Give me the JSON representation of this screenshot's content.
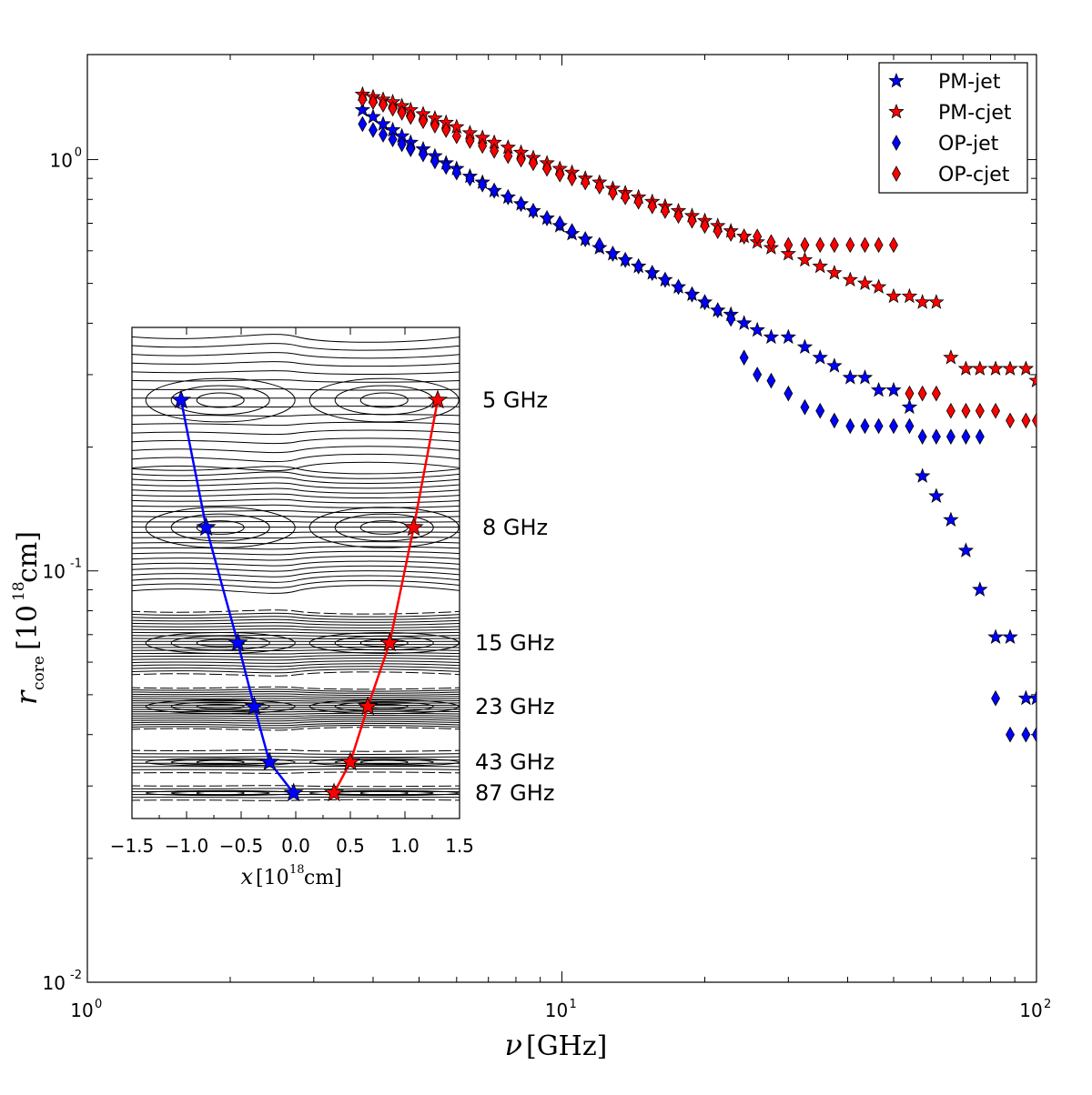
{
  "chart_data": [
    {
      "type": "scatter",
      "name": "core-radius-vs-frequency",
      "xscale": "log",
      "yscale": "log",
      "xlim": [
        1,
        100
      ],
      "ylim": [
        0.01,
        1.8
      ],
      "xlabel": {
        "sym": "ν",
        "unit": "[GHz]"
      },
      "ylabel": {
        "sym": "r",
        "sub": "core",
        "unit_pre": "[10",
        "unit_exp": "18",
        "unit_post": "cm]"
      },
      "xticks": [
        {
          "v": 1,
          "base": "10",
          "exp": "0"
        },
        {
          "v": 10,
          "base": "10",
          "exp": "1"
        },
        {
          "v": 100,
          "base": "10",
          "exp": "2"
        }
      ],
      "yticks": [
        {
          "v": 0.01,
          "base": "10",
          "exp": "-2"
        },
        {
          "v": 0.1,
          "base": "10",
          "exp": "-1"
        },
        {
          "v": 1,
          "base": "10",
          "exp": "0"
        }
      ],
      "legend_position": "top-right",
      "series": [
        {
          "name": "PM-jet",
          "marker": "star",
          "color": "#0000ff",
          "points": [
            [
              3.8,
              1.32
            ],
            [
              4.0,
              1.27
            ],
            [
              4.2,
              1.22
            ],
            [
              4.4,
              1.18
            ],
            [
              4.6,
              1.14
            ],
            [
              4.8,
              1.1
            ],
            [
              5.1,
              1.06
            ],
            [
              5.4,
              1.02
            ],
            [
              5.7,
              0.98
            ],
            [
              6.0,
              0.95
            ],
            [
              6.4,
              0.91
            ],
            [
              6.8,
              0.88
            ],
            [
              7.2,
              0.84
            ],
            [
              7.7,
              0.81
            ],
            [
              8.2,
              0.78
            ],
            [
              8.7,
              0.75
            ],
            [
              9.3,
              0.72
            ],
            [
              9.9,
              0.69
            ],
            [
              10.5,
              0.66
            ],
            [
              11.2,
              0.64
            ],
            [
              12.0,
              0.61
            ],
            [
              12.8,
              0.59
            ],
            [
              13.6,
              0.57
            ],
            [
              14.5,
              0.55
            ],
            [
              15.5,
              0.53
            ],
            [
              16.5,
              0.51
            ],
            [
              17.6,
              0.49
            ],
            [
              18.8,
              0.47
            ],
            [
              20.0,
              0.45
            ],
            [
              21.3,
              0.43
            ],
            [
              22.7,
              0.42
            ],
            [
              24.2,
              0.4
            ],
            [
              25.8,
              0.385
            ],
            [
              27.6,
              0.37
            ],
            [
              30.0,
              0.37
            ],
            [
              32.5,
              0.35
            ],
            [
              35.0,
              0.33
            ],
            [
              37.5,
              0.315
            ],
            [
              40.5,
              0.295
            ],
            [
              43.5,
              0.295
            ],
            [
              46.5,
              0.275
            ],
            [
              50.0,
              0.275
            ],
            [
              54.0,
              0.25
            ],
            [
              57.5,
              0.17
            ],
            [
              61.5,
              0.152
            ],
            [
              66.0,
              0.133
            ],
            [
              71.0,
              0.112
            ],
            [
              76.0,
              0.09
            ],
            [
              82.0,
              0.069
            ],
            [
              88.0,
              0.069
            ],
            [
              95.0,
              0.049
            ],
            [
              100.0,
              0.049
            ]
          ]
        },
        {
          "name": "PM-cjet",
          "marker": "star",
          "color": "#ff0000",
          "points": [
            [
              3.8,
              1.44
            ],
            [
              4.0,
              1.42
            ],
            [
              4.2,
              1.4
            ],
            [
              4.4,
              1.38
            ],
            [
              4.6,
              1.35
            ],
            [
              4.8,
              1.32
            ],
            [
              5.1,
              1.29
            ],
            [
              5.4,
              1.26
            ],
            [
              5.7,
              1.23
            ],
            [
              6.0,
              1.2
            ],
            [
              6.4,
              1.16
            ],
            [
              6.8,
              1.13
            ],
            [
              7.2,
              1.1
            ],
            [
              7.7,
              1.07
            ],
            [
              8.2,
              1.04
            ],
            [
              8.7,
              1.01
            ],
            [
              9.3,
              0.98
            ],
            [
              9.9,
              0.95
            ],
            [
              10.5,
              0.93
            ],
            [
              11.2,
              0.9
            ],
            [
              12.0,
              0.88
            ],
            [
              12.8,
              0.85
            ],
            [
              13.6,
              0.83
            ],
            [
              14.5,
              0.81
            ],
            [
              15.5,
              0.79
            ],
            [
              16.5,
              0.77
            ],
            [
              17.6,
              0.75
            ],
            [
              18.8,
              0.73
            ],
            [
              20.0,
              0.71
            ],
            [
              21.3,
              0.69
            ],
            [
              22.7,
              0.67
            ],
            [
              24.2,
              0.65
            ],
            [
              25.8,
              0.63
            ],
            [
              27.6,
              0.61
            ],
            [
              30.0,
              0.59
            ],
            [
              32.5,
              0.57
            ],
            [
              35.0,
              0.55
            ],
            [
              37.5,
              0.53
            ],
            [
              40.5,
              0.51
            ],
            [
              43.5,
              0.5
            ],
            [
              46.5,
              0.49
            ],
            [
              50.0,
              0.465
            ],
            [
              54.0,
              0.465
            ],
            [
              57.5,
              0.45
            ],
            [
              61.5,
              0.45
            ],
            [
              66.0,
              0.33
            ],
            [
              71.0,
              0.31
            ],
            [
              76.0,
              0.31
            ],
            [
              82.0,
              0.31
            ],
            [
              88.0,
              0.31
            ],
            [
              95.0,
              0.31
            ],
            [
              100.0,
              0.29
            ]
          ]
        },
        {
          "name": "OP-jet",
          "marker": "diamond",
          "color": "#0000ff",
          "points": [
            [
              3.8,
              1.22
            ],
            [
              4.0,
              1.18
            ],
            [
              4.2,
              1.15
            ],
            [
              4.4,
              1.12
            ],
            [
              4.6,
              1.09
            ],
            [
              4.8,
              1.06
            ],
            [
              5.1,
              1.03
            ],
            [
              5.4,
              0.99
            ],
            [
              5.7,
              0.96
            ],
            [
              6.0,
              0.93
            ],
            [
              6.4,
              0.9
            ],
            [
              6.8,
              0.87
            ],
            [
              7.2,
              0.84
            ],
            [
              7.7,
              0.81
            ],
            [
              8.2,
              0.78
            ],
            [
              8.7,
              0.75
            ],
            [
              9.3,
              0.72
            ],
            [
              9.9,
              0.7
            ],
            [
              10.5,
              0.67
            ],
            [
              11.2,
              0.64
            ],
            [
              12.0,
              0.62
            ],
            [
              12.8,
              0.59
            ],
            [
              13.6,
              0.57
            ],
            [
              14.5,
              0.55
            ],
            [
              15.5,
              0.53
            ],
            [
              16.5,
              0.51
            ],
            [
              17.6,
              0.49
            ],
            [
              18.8,
              0.47
            ],
            [
              20.0,
              0.45
            ],
            [
              21.3,
              0.43
            ],
            [
              22.7,
              0.41
            ],
            [
              24.2,
              0.33
            ],
            [
              25.8,
              0.3
            ],
            [
              27.6,
              0.29
            ],
            [
              30.0,
              0.27
            ],
            [
              32.5,
              0.25
            ],
            [
              35.0,
              0.245
            ],
            [
              37.5,
              0.232
            ],
            [
              40.5,
              0.225
            ],
            [
              43.5,
              0.225
            ],
            [
              46.5,
              0.225
            ],
            [
              50.0,
              0.225
            ],
            [
              54.0,
              0.225
            ],
            [
              57.5,
              0.212
            ],
            [
              61.5,
              0.212
            ],
            [
              66.0,
              0.212
            ],
            [
              71.0,
              0.212
            ],
            [
              76.0,
              0.212
            ],
            [
              82.0,
              0.049
            ],
            [
              88.0,
              0.04
            ],
            [
              95.0,
              0.04
            ],
            [
              100.0,
              0.04
            ]
          ]
        },
        {
          "name": "OP-cjet",
          "marker": "diamond",
          "color": "#ff0000",
          "points": [
            [
              3.8,
              1.4
            ],
            [
              4.0,
              1.38
            ],
            [
              4.2,
              1.36
            ],
            [
              4.4,
              1.33
            ],
            [
              4.6,
              1.3
            ],
            [
              4.8,
              1.27
            ],
            [
              5.1,
              1.24
            ],
            [
              5.4,
              1.21
            ],
            [
              5.7,
              1.18
            ],
            [
              6.0,
              1.14
            ],
            [
              6.4,
              1.11
            ],
            [
              6.8,
              1.08
            ],
            [
              7.2,
              1.05
            ],
            [
              7.7,
              1.02
            ],
            [
              8.2,
              1.0
            ],
            [
              8.7,
              0.98
            ],
            [
              9.3,
              0.95
            ],
            [
              9.9,
              0.92
            ],
            [
              10.5,
              0.9
            ],
            [
              11.2,
              0.88
            ],
            [
              12.0,
              0.86
            ],
            [
              12.8,
              0.83
            ],
            [
              13.6,
              0.81
            ],
            [
              14.5,
              0.79
            ],
            [
              15.5,
              0.77
            ],
            [
              16.5,
              0.75
            ],
            [
              17.6,
              0.73
            ],
            [
              18.8,
              0.71
            ],
            [
              20.0,
              0.69
            ],
            [
              21.3,
              0.67
            ],
            [
              22.7,
              0.66
            ],
            [
              24.2,
              0.65
            ],
            [
              25.8,
              0.65
            ],
            [
              27.6,
              0.63
            ],
            [
              30.0,
              0.62
            ],
            [
              32.5,
              0.62
            ],
            [
              35.0,
              0.62
            ],
            [
              37.5,
              0.62
            ],
            [
              40.5,
              0.62
            ],
            [
              43.5,
              0.62
            ],
            [
              46.5,
              0.62
            ],
            [
              50.0,
              0.62
            ],
            [
              54.0,
              0.27
            ],
            [
              57.5,
              0.27
            ],
            [
              61.5,
              0.27
            ],
            [
              66.0,
              0.245
            ],
            [
              71.0,
              0.245
            ],
            [
              76.0,
              0.245
            ],
            [
              82.0,
              0.245
            ],
            [
              88.0,
              0.232
            ],
            [
              95.0,
              0.232
            ],
            [
              100.0,
              0.232
            ]
          ]
        }
      ]
    },
    {
      "type": "line",
      "name": "inset-core-position",
      "xlim": [
        -1.5,
        1.5
      ],
      "xticks": [
        "−1.5",
        "−1.0",
        "−0.5",
        "0.0",
        "0.5",
        "1.0",
        "1.5"
      ],
      "xtick_values": [
        -1.5,
        -1.0,
        -0.5,
        0.0,
        0.5,
        1.0,
        1.5
      ],
      "xlabel": {
        "sym": "x",
        "unit_pre": "[10",
        "unit_exp": "18",
        "unit_post": "cm]"
      },
      "frequency_labels": [
        "5 GHz",
        "8 GHz",
        "15 GHz",
        "23 GHz",
        "43 GHz",
        "87 GHz"
      ],
      "series": [
        {
          "name": "jet",
          "color": "#0000ff",
          "marker": "star",
          "x": [
            -1.05,
            -0.82,
            -0.53,
            -0.38,
            -0.24,
            -0.02
          ]
        },
        {
          "name": "counter-jet",
          "color": "#ff0000",
          "marker": "star",
          "x": [
            1.3,
            1.08,
            0.86,
            0.66,
            0.5,
            0.35
          ]
        }
      ]
    }
  ]
}
